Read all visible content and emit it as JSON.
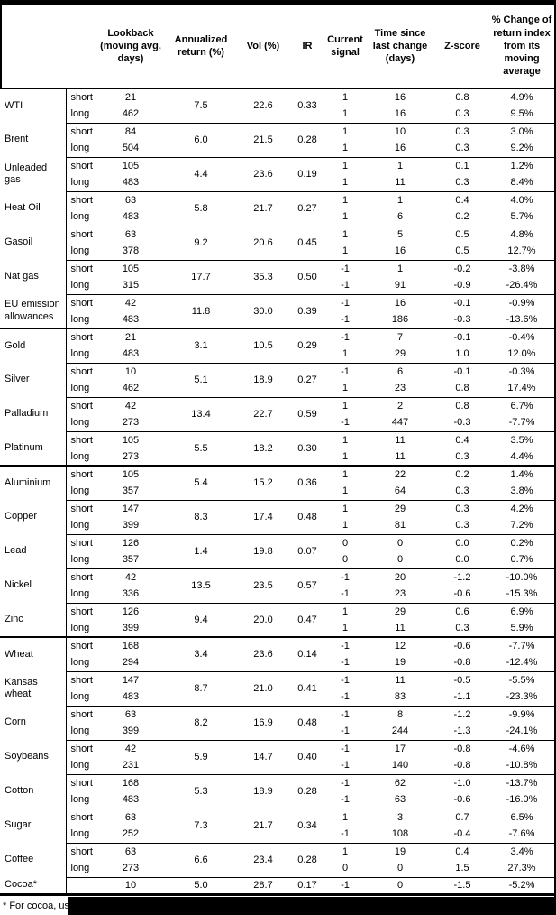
{
  "header": {
    "columns": [
      {
        "id": "name",
        "label": ""
      },
      {
        "id": "horizon",
        "label": ""
      },
      {
        "id": "lookback",
        "label": "Lookback (moving avg, days)"
      },
      {
        "id": "annualized_return",
        "label": "Annualized return (%)"
      },
      {
        "id": "vol",
        "label": "Vol (%)"
      },
      {
        "id": "ir",
        "label": "IR"
      },
      {
        "id": "current_signal",
        "label": "Current signal"
      },
      {
        "id": "time_since",
        "label": "Time since last change (days)"
      },
      {
        "id": "zscore",
        "label": "Z-score"
      },
      {
        "id": "pct_change",
        "label": "% Change of return index from its moving average"
      }
    ]
  },
  "groups": [
    {
      "name": "WTI",
      "sector_start": false,
      "annualized_return": "7.5",
      "vol": "22.6",
      "ir": "0.33",
      "rows": [
        {
          "horizon": "short",
          "lookback": "21",
          "signal": "1",
          "time_since": "16",
          "zscore": "0.8",
          "pct_change": "4.9%"
        },
        {
          "horizon": "long",
          "lookback": "462",
          "signal": "1",
          "time_since": "16",
          "zscore": "0.3",
          "pct_change": "9.5%"
        }
      ]
    },
    {
      "name": "Brent",
      "sector_start": false,
      "annualized_return": "6.0",
      "vol": "21.5",
      "ir": "0.28",
      "rows": [
        {
          "horizon": "short",
          "lookback": "84",
          "signal": "1",
          "time_since": "10",
          "zscore": "0.3",
          "pct_change": "3.0%"
        },
        {
          "horizon": "long",
          "lookback": "504",
          "signal": "1",
          "time_since": "16",
          "zscore": "0.3",
          "pct_change": "9.2%"
        }
      ]
    },
    {
      "name": "Unleaded gas",
      "sector_start": false,
      "annualized_return": "4.4",
      "vol": "23.6",
      "ir": "0.19",
      "rows": [
        {
          "horizon": "short",
          "lookback": "105",
          "signal": "1",
          "time_since": "1",
          "zscore": "0.1",
          "pct_change": "1.2%"
        },
        {
          "horizon": "long",
          "lookback": "483",
          "signal": "1",
          "time_since": "11",
          "zscore": "0.3",
          "pct_change": "8.4%"
        }
      ]
    },
    {
      "name": "Heat Oil",
      "sector_start": false,
      "annualized_return": "5.8",
      "vol": "21.7",
      "ir": "0.27",
      "rows": [
        {
          "horizon": "short",
          "lookback": "63",
          "signal": "1",
          "time_since": "1",
          "zscore": "0.4",
          "pct_change": "4.0%"
        },
        {
          "horizon": "long",
          "lookback": "483",
          "signal": "1",
          "time_since": "6",
          "zscore": "0.2",
          "pct_change": "5.7%"
        }
      ]
    },
    {
      "name": "Gasoil",
      "sector_start": false,
      "annualized_return": "9.2",
      "vol": "20.6",
      "ir": "0.45",
      "rows": [
        {
          "horizon": "short",
          "lookback": "63",
          "signal": "1",
          "time_since": "5",
          "zscore": "0.5",
          "pct_change": "4.8%"
        },
        {
          "horizon": "long",
          "lookback": "378",
          "signal": "1",
          "time_since": "16",
          "zscore": "0.5",
          "pct_change": "12.7%"
        }
      ]
    },
    {
      "name": "Nat gas",
      "sector_start": false,
      "annualized_return": "17.7",
      "vol": "35.3",
      "ir": "0.50",
      "rows": [
        {
          "horizon": "short",
          "lookback": "105",
          "signal": "-1",
          "time_since": "1",
          "zscore": "-0.2",
          "pct_change": "-3.8%"
        },
        {
          "horizon": "long",
          "lookback": "315",
          "signal": "-1",
          "time_since": "91",
          "zscore": "-0.9",
          "pct_change": "-26.4%"
        }
      ]
    },
    {
      "name": "EU emission allowances",
      "sector_start": false,
      "annualized_return": "11.8",
      "vol": "30.0",
      "ir": "0.39",
      "rows": [
        {
          "horizon": "short",
          "lookback": "42",
          "signal": "-1",
          "time_since": "16",
          "zscore": "-0.1",
          "pct_change": "-0.9%"
        },
        {
          "horizon": "long",
          "lookback": "483",
          "signal": "-1",
          "time_since": "186",
          "zscore": "-0.3",
          "pct_change": "-13.6%"
        }
      ]
    },
    {
      "name": "Gold",
      "sector_start": true,
      "annualized_return": "3.1",
      "vol": "10.5",
      "ir": "0.29",
      "rows": [
        {
          "horizon": "short",
          "lookback": "21",
          "signal": "-1",
          "time_since": "7",
          "zscore": "-0.1",
          "pct_change": "-0.4%"
        },
        {
          "horizon": "long",
          "lookback": "483",
          "signal": "1",
          "time_since": "29",
          "zscore": "1.0",
          "pct_change": "12.0%"
        }
      ]
    },
    {
      "name": "Silver",
      "sector_start": false,
      "annualized_return": "5.1",
      "vol": "18.9",
      "ir": "0.27",
      "rows": [
        {
          "horizon": "short",
          "lookback": "10",
          "signal": "-1",
          "time_since": "6",
          "zscore": "-0.1",
          "pct_change": "-0.3%"
        },
        {
          "horizon": "long",
          "lookback": "462",
          "signal": "1",
          "time_since": "23",
          "zscore": "0.8",
          "pct_change": "17.4%"
        }
      ]
    },
    {
      "name": "Palladium",
      "sector_start": false,
      "annualized_return": "13.4",
      "vol": "22.7",
      "ir": "0.59",
      "rows": [
        {
          "horizon": "short",
          "lookback": "42",
          "signal": "1",
          "time_since": "2",
          "zscore": "0.8",
          "pct_change": "6.7%"
        },
        {
          "horizon": "long",
          "lookback": "273",
          "signal": "-1",
          "time_since": "447",
          "zscore": "-0.3",
          "pct_change": "-7.7%"
        }
      ]
    },
    {
      "name": "Platinum",
      "sector_start": false,
      "annualized_return": "5.5",
      "vol": "18.2",
      "ir": "0.30",
      "rows": [
        {
          "horizon": "short",
          "lookback": "105",
          "signal": "1",
          "time_since": "11",
          "zscore": "0.4",
          "pct_change": "3.5%"
        },
        {
          "horizon": "long",
          "lookback": "273",
          "signal": "1",
          "time_since": "11",
          "zscore": "0.3",
          "pct_change": "4.4%"
        }
      ]
    },
    {
      "name": "Aluminium",
      "sector_start": true,
      "annualized_return": "5.4",
      "vol": "15.2",
      "ir": "0.36",
      "rows": [
        {
          "horizon": "short",
          "lookback": "105",
          "signal": "1",
          "time_since": "22",
          "zscore": "0.2",
          "pct_change": "1.4%"
        },
        {
          "horizon": "long",
          "lookback": "357",
          "signal": "1",
          "time_since": "64",
          "zscore": "0.3",
          "pct_change": "3.8%"
        }
      ]
    },
    {
      "name": "Copper",
      "sector_start": false,
      "annualized_return": "8.3",
      "vol": "17.4",
      "ir": "0.48",
      "rows": [
        {
          "horizon": "short",
          "lookback": "147",
          "signal": "1",
          "time_since": "29",
          "zscore": "0.3",
          "pct_change": "4.2%"
        },
        {
          "horizon": "long",
          "lookback": "399",
          "signal": "1",
          "time_since": "81",
          "zscore": "0.3",
          "pct_change": "7.2%"
        }
      ]
    },
    {
      "name": "Lead",
      "sector_start": false,
      "annualized_return": "1.4",
      "vol": "19.8",
      "ir": "0.07",
      "rows": [
        {
          "horizon": "short",
          "lookback": "126",
          "signal": "0",
          "time_since": "0",
          "zscore": "0.0",
          "pct_change": "0.2%"
        },
        {
          "horizon": "long",
          "lookback": "357",
          "signal": "0",
          "time_since": "0",
          "zscore": "0.0",
          "pct_change": "0.7%"
        }
      ]
    },
    {
      "name": "Nickel",
      "sector_start": false,
      "annualized_return": "13.5",
      "vol": "23.5",
      "ir": "0.57",
      "rows": [
        {
          "horizon": "short",
          "lookback": "42",
          "signal": "-1",
          "time_since": "20",
          "zscore": "-1.2",
          "pct_change": "-10.0%"
        },
        {
          "horizon": "long",
          "lookback": "336",
          "signal": "-1",
          "time_since": "23",
          "zscore": "-0.6",
          "pct_change": "-15.3%"
        }
      ]
    },
    {
      "name": "Zinc",
      "sector_start": false,
      "annualized_return": "9.4",
      "vol": "20.0",
      "ir": "0.47",
      "rows": [
        {
          "horizon": "short",
          "lookback": "126",
          "signal": "1",
          "time_since": "29",
          "zscore": "0.6",
          "pct_change": "6.9%"
        },
        {
          "horizon": "long",
          "lookback": "399",
          "signal": "1",
          "time_since": "11",
          "zscore": "0.3",
          "pct_change": "5.9%"
        }
      ]
    },
    {
      "name": "Wheat",
      "sector_start": true,
      "annualized_return": "3.4",
      "vol": "23.6",
      "ir": "0.14",
      "rows": [
        {
          "horizon": "short",
          "lookback": "168",
          "signal": "-1",
          "time_since": "12",
          "zscore": "-0.6",
          "pct_change": "-7.7%"
        },
        {
          "horizon": "long",
          "lookback": "294",
          "signal": "-1",
          "time_since": "19",
          "zscore": "-0.8",
          "pct_change": "-12.4%"
        }
      ]
    },
    {
      "name": "Kansas wheat",
      "sector_start": false,
      "annualized_return": "8.7",
      "vol": "21.0",
      "ir": "0.41",
      "rows": [
        {
          "horizon": "short",
          "lookback": "147",
          "signal": "-1",
          "time_since": "11",
          "zscore": "-0.5",
          "pct_change": "-5.5%"
        },
        {
          "horizon": "long",
          "lookback": "483",
          "signal": "-1",
          "time_since": "83",
          "zscore": "-1.1",
          "pct_change": "-23.3%"
        }
      ]
    },
    {
      "name": "Corn",
      "sector_start": false,
      "annualized_return": "8.2",
      "vol": "16.9",
      "ir": "0.48",
      "rows": [
        {
          "horizon": "short",
          "lookback": "63",
          "signal": "-1",
          "time_since": "8",
          "zscore": "-1.2",
          "pct_change": "-9.9%"
        },
        {
          "horizon": "long",
          "lookback": "399",
          "signal": "-1",
          "time_since": "244",
          "zscore": "-1.3",
          "pct_change": "-24.1%"
        }
      ]
    },
    {
      "name": "Soybeans",
      "sector_start": false,
      "annualized_return": "5.9",
      "vol": "14.7",
      "ir": "0.40",
      "rows": [
        {
          "horizon": "short",
          "lookback": "42",
          "signal": "-1",
          "time_since": "17",
          "zscore": "-0.8",
          "pct_change": "-4.6%"
        },
        {
          "horizon": "long",
          "lookback": "231",
          "signal": "-1",
          "time_since": "140",
          "zscore": "-0.8",
          "pct_change": "-10.8%"
        }
      ]
    },
    {
      "name": "Cotton",
      "sector_start": false,
      "annualized_return": "5.3",
      "vol": "18.9",
      "ir": "0.28",
      "rows": [
        {
          "horizon": "short",
          "lookback": "168",
          "signal": "-1",
          "time_since": "62",
          "zscore": "-1.0",
          "pct_change": "-13.7%"
        },
        {
          "horizon": "long",
          "lookback": "483",
          "signal": "-1",
          "time_since": "63",
          "zscore": "-0.6",
          "pct_change": "-16.0%"
        }
      ]
    },
    {
      "name": "Sugar",
      "sector_start": false,
      "annualized_return": "7.3",
      "vol": "21.7",
      "ir": "0.34",
      "rows": [
        {
          "horizon": "short",
          "lookback": "63",
          "signal": "1",
          "time_since": "3",
          "zscore": "0.7",
          "pct_change": "6.5%"
        },
        {
          "horizon": "long",
          "lookback": "252",
          "signal": "-1",
          "time_since": "108",
          "zscore": "-0.4",
          "pct_change": "-7.6%"
        }
      ]
    },
    {
      "name": "Coffee",
      "sector_start": false,
      "annualized_return": "6.6",
      "vol": "23.4",
      "ir": "0.28",
      "rows": [
        {
          "horizon": "short",
          "lookback": "63",
          "signal": "1",
          "time_since": "19",
          "zscore": "0.4",
          "pct_change": "3.4%"
        },
        {
          "horizon": "long",
          "lookback": "273",
          "signal": "0",
          "time_since": "0",
          "zscore": "1.5",
          "pct_change": "27.3%"
        }
      ]
    },
    {
      "name": "Cocoa*",
      "sector_start": false,
      "annualized_return": "5.0",
      "vol": "28.7",
      "ir": "0.17",
      "rows": [
        {
          "horizon": "",
          "lookback": "10",
          "signal": "-1",
          "time_since": "0",
          "zscore": "-1.5",
          "pct_change": "-5.2%"
        }
      ]
    }
  ],
  "footnote": {
    "visible_text": "* For cocoa, uses"
  }
}
